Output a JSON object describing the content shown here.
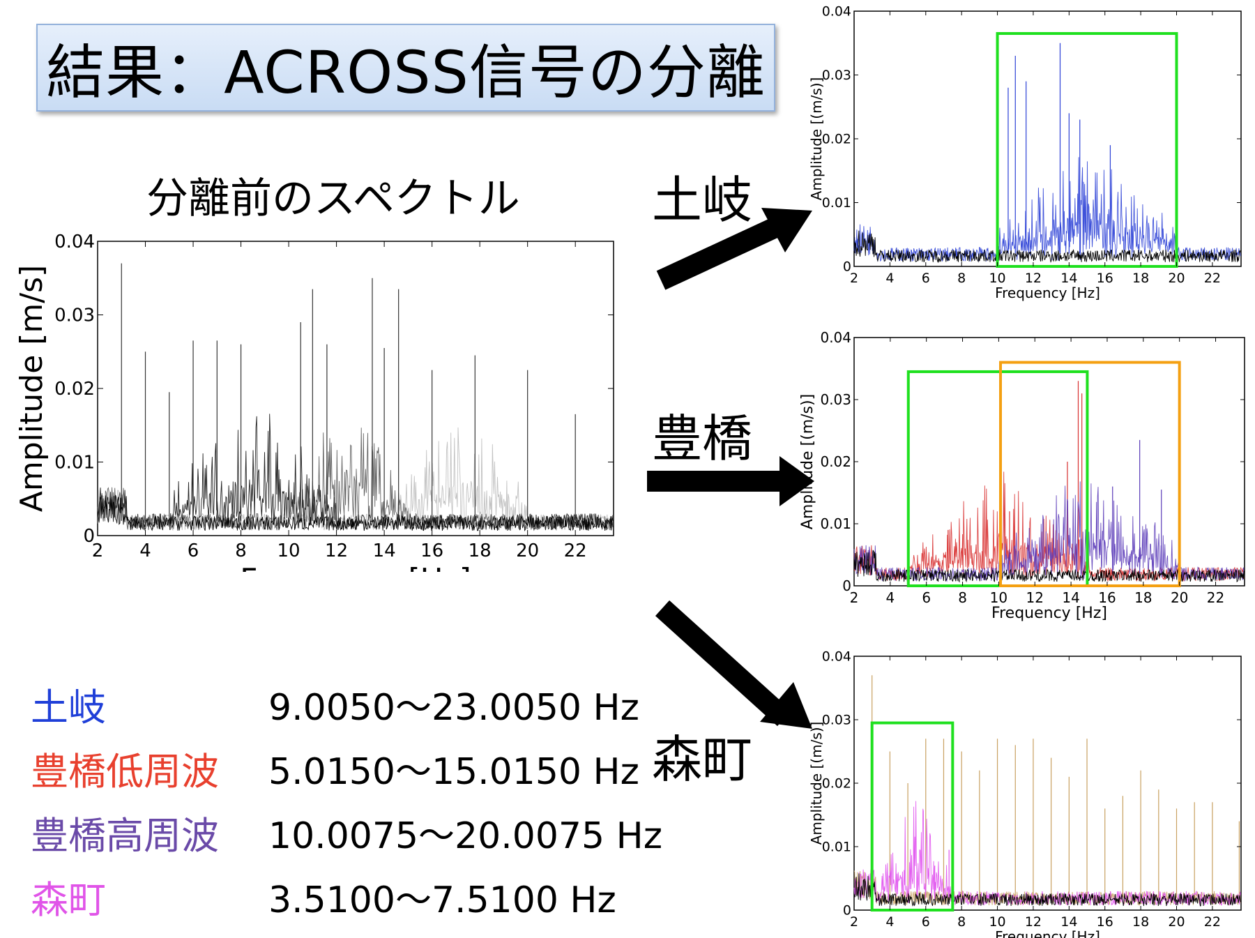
{
  "title": "結果：ACROSS信号の分離",
  "subtitle": "分離前のスペクトル",
  "sites": {
    "toki": "土岐",
    "toyohashi": "豊橋",
    "morimachi": "森町"
  },
  "legend": [
    {
      "name": "土岐",
      "range": "9.0050〜23.0050 Hz",
      "color": "#1f3fd8"
    },
    {
      "name": "豊橋低周波",
      "range": "5.0150〜15.0150 Hz",
      "color": "#e8402e"
    },
    {
      "name": "豊橋高周波",
      "range": "10.0075〜20.0075 Hz",
      "color": "#6a4aa8"
    },
    {
      "name": "森町",
      "range": "3.5100〜7.5100 Hz",
      "color": "#e054e8"
    }
  ],
  "chart_data": [
    {
      "type": "line",
      "id": "before",
      "xlabel": "Frequency [Hz]",
      "ylabel": "Amplitude [m/s]",
      "xlim": [
        2,
        23.6
      ],
      "ylim": [
        0,
        0.04
      ],
      "xticks": [
        2,
        4,
        6,
        8,
        10,
        12,
        14,
        16,
        18,
        20,
        22
      ],
      "yticks": [
        0,
        0.01,
        0.02,
        0.03,
        0.04
      ],
      "ytick_labels": [
        "0",
        "0.01",
        "0.02",
        "0.03",
        "0.04"
      ],
      "peaks": [
        {
          "x": 3.0,
          "y": 0.037
        },
        {
          "x": 4.0,
          "y": 0.025
        },
        {
          "x": 5.0,
          "y": 0.0195
        },
        {
          "x": 6.0,
          "y": 0.0265
        },
        {
          "x": 7.0,
          "y": 0.0265
        },
        {
          "x": 8.0,
          "y": 0.026
        },
        {
          "x": 10.5,
          "y": 0.029
        },
        {
          "x": 11.0,
          "y": 0.0335
        },
        {
          "x": 11.6,
          "y": 0.026
        },
        {
          "x": 13.5,
          "y": 0.035
        },
        {
          "x": 14.0,
          "y": 0.0255
        },
        {
          "x": 14.6,
          "y": 0.0335
        },
        {
          "x": 16.0,
          "y": 0.0225
        },
        {
          "x": 17.8,
          "y": 0.0245
        },
        {
          "x": 20.0,
          "y": 0.0225
        },
        {
          "x": 22.0,
          "y": 0.0165
        }
      ],
      "noise_level": 0.002
    },
    {
      "type": "line",
      "id": "toki",
      "xlabel": "Frequency [Hz]",
      "ylabel": "Amplitude [(m/s)]",
      "xlim": [
        2,
        23.6
      ],
      "ylim": [
        0,
        0.04
      ],
      "xticks": [
        2,
        4,
        6,
        8,
        10,
        12,
        14,
        16,
        18,
        20,
        22
      ],
      "yticks": [
        0,
        0.01,
        0.02,
        0.03,
        0.04
      ],
      "ytick_labels": [
        "0",
        "0.01",
        "0.02",
        "0.03",
        "0.04"
      ],
      "series": [
        {
          "color": "#2a3fd6",
          "band": [
            10.0,
            20.0
          ],
          "peaks": [
            {
              "x": 10.6,
              "y": 0.028
            },
            {
              "x": 11.0,
              "y": 0.033
            },
            {
              "x": 11.6,
              "y": 0.029
            },
            {
              "x": 13.5,
              "y": 0.035
            },
            {
              "x": 14.0,
              "y": 0.024
            },
            {
              "x": 14.6,
              "y": 0.023
            },
            {
              "x": 16.3,
              "y": 0.019
            }
          ]
        }
      ],
      "box": {
        "x": [
          10.0,
          20.0
        ],
        "y": [
          0,
          0.0365
        ],
        "color": "#1fe01f"
      }
    },
    {
      "type": "line",
      "id": "toyohashi",
      "xlabel": "Frequency [Hz]",
      "ylabel": "Amplitude [(m/s)]",
      "xlim": [
        2,
        23.6
      ],
      "ylim": [
        0,
        0.04
      ],
      "xticks": [
        2,
        4,
        6,
        8,
        10,
        12,
        14,
        16,
        18,
        20,
        22
      ],
      "yticks": [
        0,
        0.01,
        0.02,
        0.03,
        0.04
      ],
      "ytick_labels": [
        "0",
        "0.01",
        "0.02",
        "0.03",
        "0.04"
      ],
      "series": [
        {
          "color": "#d83030",
          "band": [
            5.0,
            15.0
          ],
          "peaks": [
            {
              "x": 13.8,
              "y": 0.02
            },
            {
              "x": 14.4,
              "y": 0.033
            },
            {
              "x": 14.6,
              "y": 0.031
            },
            {
              "x": 10.6,
              "y": 0.012
            },
            {
              "x": 7.2,
              "y": 0.009
            }
          ]
        },
        {
          "color": "#5a3ab8",
          "band": [
            10.0,
            20.0
          ],
          "peaks": [
            {
              "x": 17.8,
              "y": 0.0235
            },
            {
              "x": 16.3,
              "y": 0.016
            },
            {
              "x": 19.0,
              "y": 0.0155
            }
          ]
        }
      ],
      "boxes": [
        {
          "x": [
            5.0,
            14.9
          ],
          "y": [
            0,
            0.0345
          ],
          "color": "#1fe01f"
        },
        {
          "x": [
            10.1,
            20.0
          ],
          "y": [
            0,
            0.036
          ],
          "color": "#f4a012"
        }
      ]
    },
    {
      "type": "line",
      "id": "morimachi",
      "xlabel": "Frequency [Hz]",
      "ylabel": "Amplitude [(m/s)]",
      "xlim": [
        2,
        23.6
      ],
      "ylim": [
        0,
        0.04
      ],
      "xticks": [
        2,
        4,
        6,
        8,
        10,
        12,
        14,
        16,
        18,
        20,
        22
      ],
      "yticks": [
        0,
        0.01,
        0.02,
        0.03,
        0.04
      ],
      "ytick_labels": [
        "0",
        "0.01",
        "0.02",
        "0.03",
        "0.04"
      ],
      "series": [
        {
          "color": "#c8a060",
          "peaks": [
            {
              "x": 3.0,
              "y": 0.037
            },
            {
              "x": 4.0,
              "y": 0.025
            },
            {
              "x": 5.0,
              "y": 0.02
            },
            {
              "x": 6.0,
              "y": 0.027
            },
            {
              "x": 7.0,
              "y": 0.027
            },
            {
              "x": 8.0,
              "y": 0.025
            },
            {
              "x": 9.0,
              "y": 0.022
            },
            {
              "x": 10.0,
              "y": 0.027
            },
            {
              "x": 11.0,
              "y": 0.026
            },
            {
              "x": 12.0,
              "y": 0.027
            },
            {
              "x": 13.0,
              "y": 0.024
            },
            {
              "x": 14.0,
              "y": 0.021
            },
            {
              "x": 15.0,
              "y": 0.027
            },
            {
              "x": 16.0,
              "y": 0.016
            },
            {
              "x": 17.0,
              "y": 0.018
            },
            {
              "x": 18.0,
              "y": 0.022
            },
            {
              "x": 19.0,
              "y": 0.019
            },
            {
              "x": 20.0,
              "y": 0.016
            },
            {
              "x": 21.0,
              "y": 0.017
            },
            {
              "x": 22.0,
              "y": 0.017
            },
            {
              "x": 23.5,
              "y": 0.014
            }
          ]
        },
        {
          "color": "#e050ee",
          "band": [
            3.5,
            7.5
          ],
          "peaks": [
            {
              "x": 7.3,
              "y": 0.0095
            },
            {
              "x": 6.5,
              "y": 0.007
            },
            {
              "x": 5.5,
              "y": 0.006
            }
          ]
        }
      ],
      "box": {
        "x": [
          3.0,
          7.5
        ],
        "y": [
          0,
          0.0295
        ],
        "color": "#1fe01f"
      }
    }
  ]
}
